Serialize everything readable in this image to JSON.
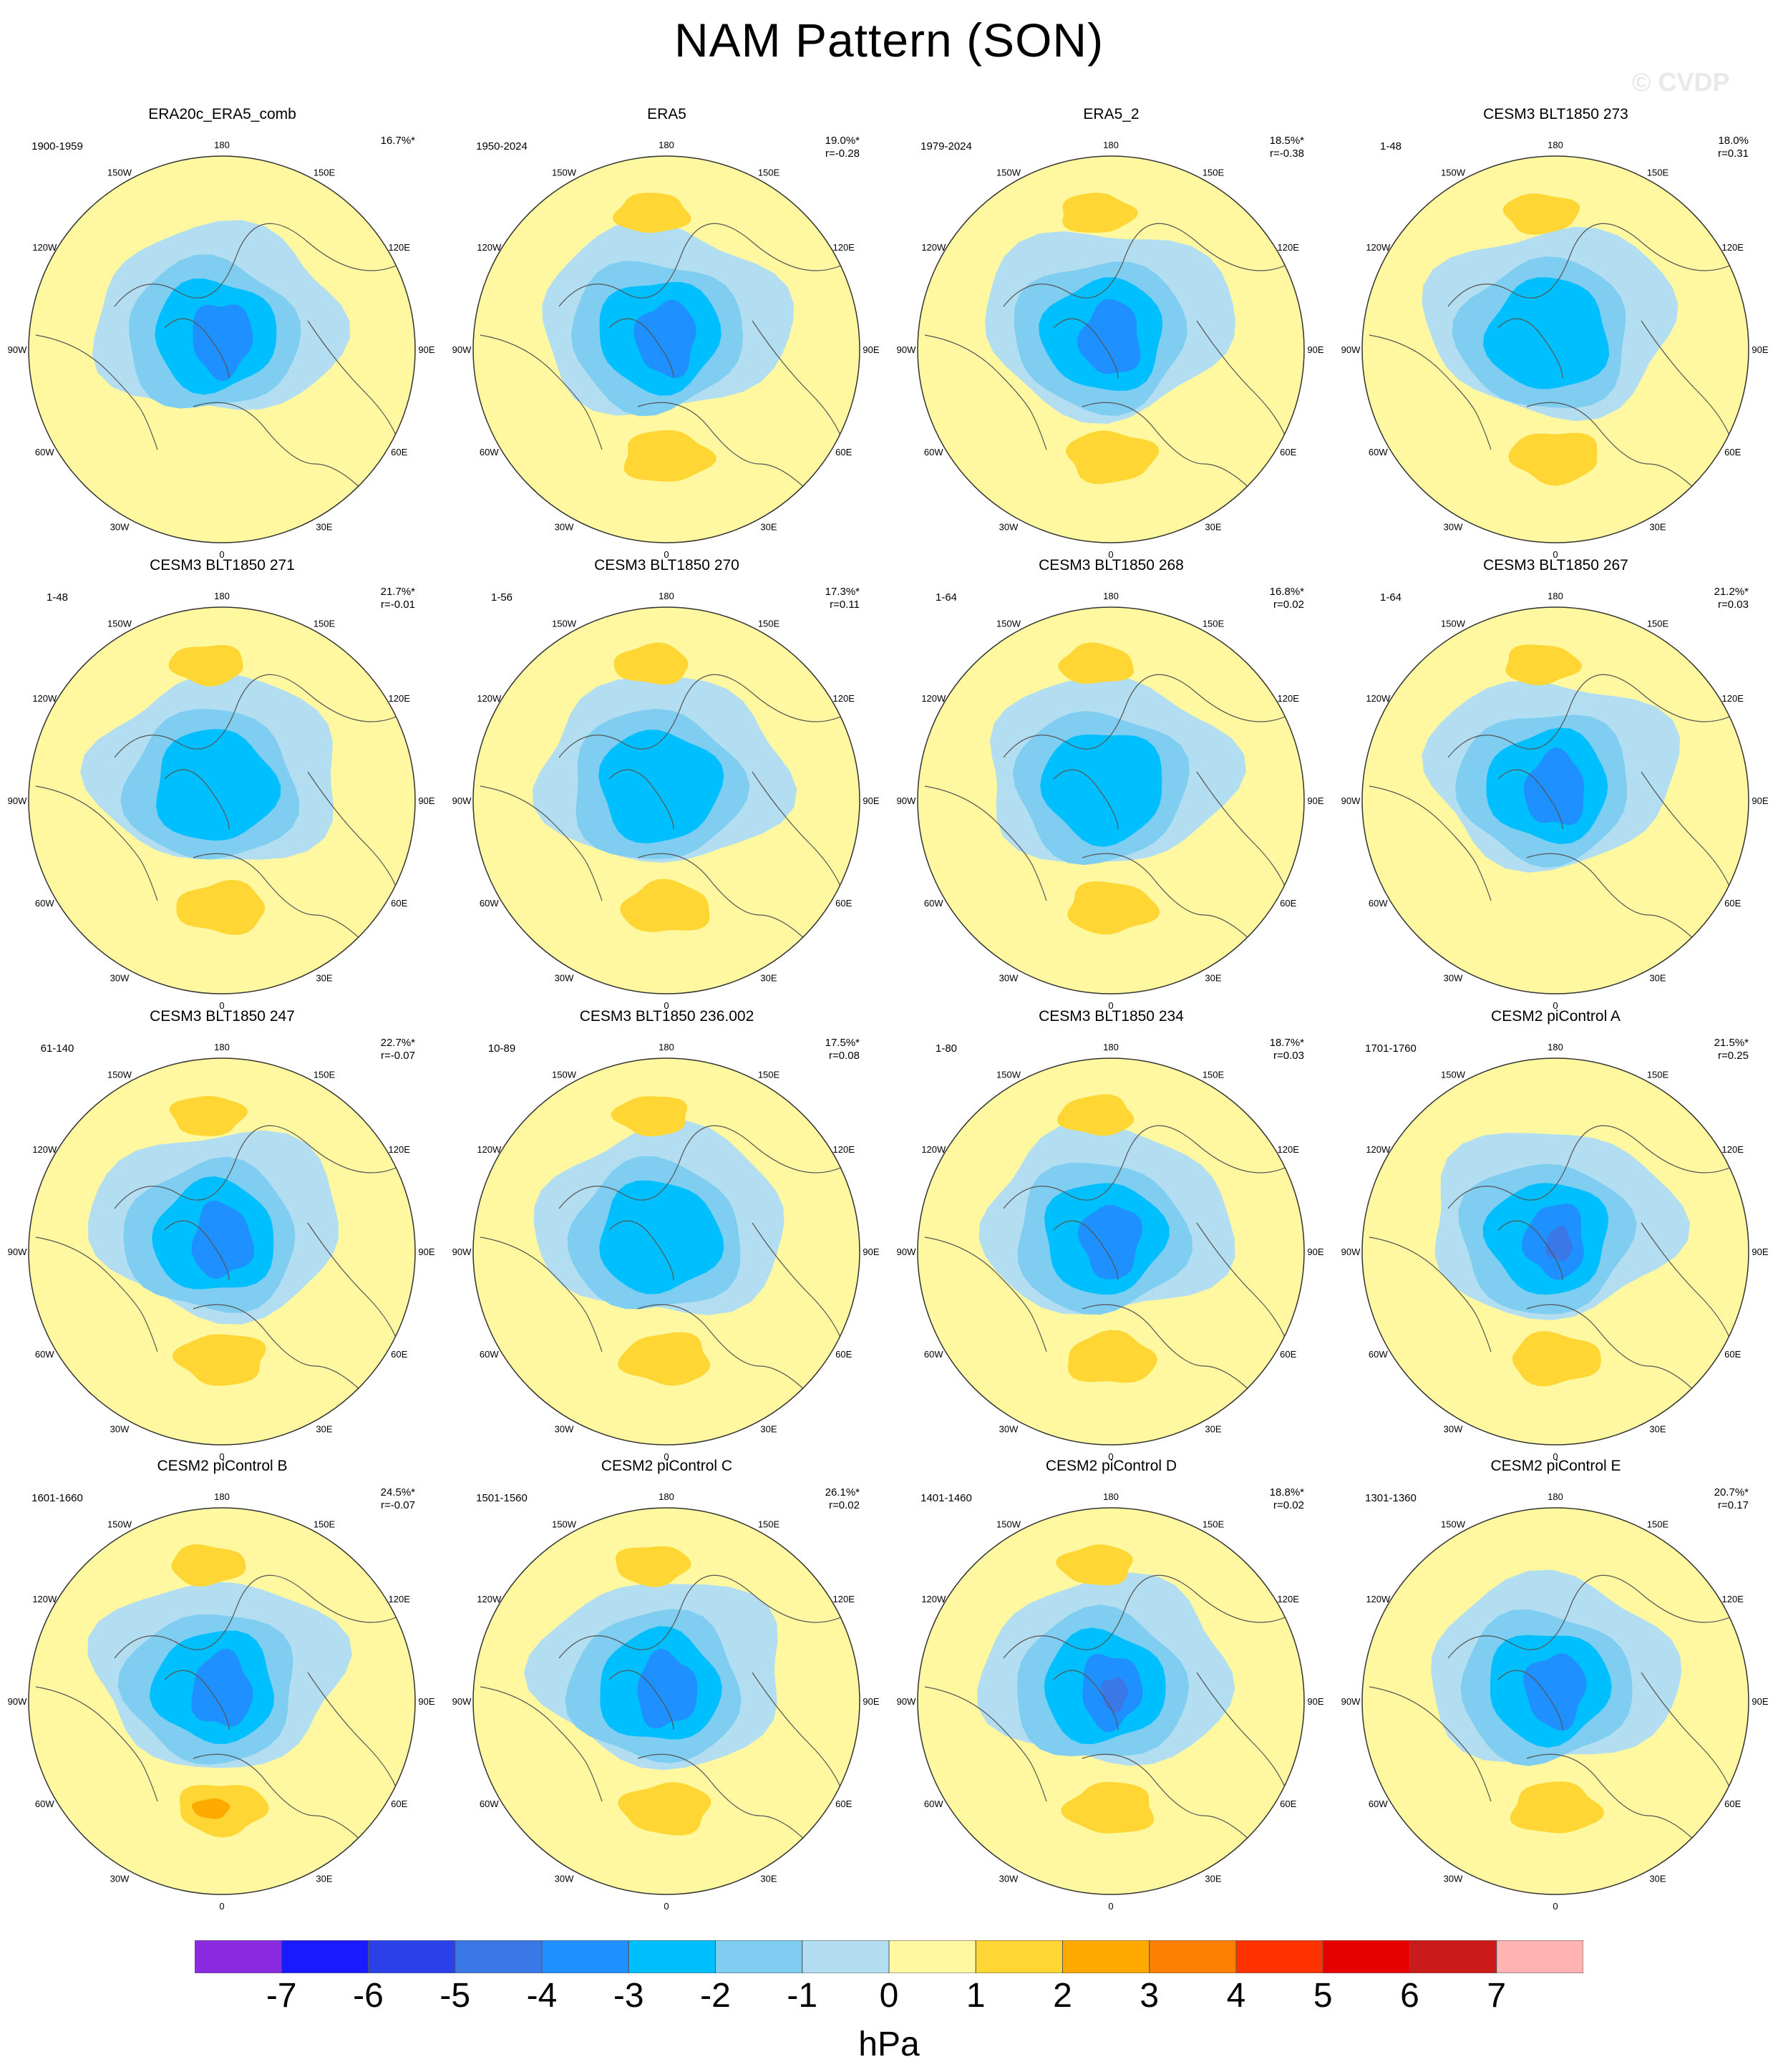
{
  "title": "NAM Pattern (SON)",
  "watermark": "© CVDP",
  "lon_labels": [
    "180",
    "150E",
    "120E",
    "90E",
    "60E",
    "30E",
    "0",
    "30W",
    "60W",
    "90W",
    "120W",
    "150W"
  ],
  "panels": [
    {
      "title": "ERA20c_ERA5_comb",
      "period": "1900-1959",
      "pct": "16.7%*",
      "r": ""
    },
    {
      "title": "ERA5",
      "period": "1950-2024",
      "pct": "19.0%*",
      "r": "r=-0.28"
    },
    {
      "title": "ERA5_2",
      "period": "1979-2024",
      "pct": "18.5%*",
      "r": "r=-0.38"
    },
    {
      "title": "CESM3 BLT1850 273",
      "period": "1-48",
      "pct": "18.0%",
      "r": "r=0.31"
    },
    {
      "title": "CESM3 BLT1850 271",
      "period": "1-48",
      "pct": "21.7%*",
      "r": "r=-0.01"
    },
    {
      "title": "CESM3 BLT1850 270",
      "period": "1-56",
      "pct": "17.3%*",
      "r": "r=0.11"
    },
    {
      "title": "CESM3 BLT1850 268",
      "period": "1-64",
      "pct": "16.8%*",
      "r": "r=0.02"
    },
    {
      "title": "CESM3 BLT1850 267",
      "period": "1-64",
      "pct": "21.2%*",
      "r": "r=0.03"
    },
    {
      "title": "CESM3 BLT1850 247",
      "period": "61-140",
      "pct": "22.7%*",
      "r": "r=-0.07"
    },
    {
      "title": "CESM3 BLT1850 236.002",
      "period": "10-89",
      "pct": "17.5%*",
      "r": "r=0.08"
    },
    {
      "title": "CESM3 BLT1850 234",
      "period": "1-80",
      "pct": "18.7%*",
      "r": "r=0.03"
    },
    {
      "title": "CESM2 piControl A",
      "period": "1701-1760",
      "pct": "21.5%*",
      "r": "r=0.25"
    },
    {
      "title": "CESM2 piControl B",
      "period": "1601-1660",
      "pct": "24.5%*",
      "r": "r=-0.07"
    },
    {
      "title": "CESM2 piControl C",
      "period": "1501-1560",
      "pct": "26.1%*",
      "r": "r=0.02"
    },
    {
      "title": "CESM2 piControl D",
      "period": "1401-1460",
      "pct": "18.8%*",
      "r": "r=0.02"
    },
    {
      "title": "CESM2 piControl E",
      "period": "1301-1360",
      "pct": "20.7%*",
      "r": "r=0.17"
    }
  ],
  "colorbar": {
    "colors": [
      "#8a2be2",
      "#1a1aff",
      "#2a40e8",
      "#3a78e8",
      "#1e90ff",
      "#00bfff",
      "#7fcdf0",
      "#b3def2",
      "#fff8a0",
      "#ffd633",
      "#ffaa00",
      "#ff7f00",
      "#ff3300",
      "#e60000",
      "#cc1a1a",
      "#ffb3b3"
    ],
    "ticks": [
      "-7",
      "-6",
      "-5",
      "-4",
      "-3",
      "-2",
      "-1",
      "0",
      "1",
      "2",
      "3",
      "4",
      "5",
      "6",
      "7"
    ],
    "unit": "hPa"
  },
  "chart_data": {
    "type": "heatmap",
    "title": "NAM Pattern (SON)",
    "projection": "north polar stereographic, 16 panels in a 4x4 grid",
    "unit": "hPa",
    "levels": [
      -7,
      -6,
      -5,
      -4,
      -3,
      -2,
      -1,
      0,
      1,
      2,
      3,
      4,
      5,
      6,
      7
    ],
    "panels": [
      {
        "name": "ERA20c_ERA5_comb",
        "explained_variance": "16.7%",
        "pattern_r": null,
        "arctic_min_hPa": -4,
        "atlantic_max_hPa": 0,
        "pacific_max_hPa": 0
      },
      {
        "name": "ERA5",
        "explained_variance": "19.0%",
        "pattern_r": -0.28,
        "arctic_min_hPa": -4,
        "atlantic_max_hPa": 2,
        "pacific_max_hPa": 2
      },
      {
        "name": "ERA5_2",
        "explained_variance": "18.5%",
        "pattern_r": -0.38,
        "arctic_min_hPa": -4,
        "atlantic_max_hPa": 2,
        "pacific_max_hPa": 2
      },
      {
        "name": "CESM3 BLT1850 273",
        "explained_variance": "18.0%",
        "pattern_r": 0.31,
        "arctic_min_hPa": -3,
        "atlantic_max_hPa": 2,
        "pacific_max_hPa": 2
      },
      {
        "name": "CESM3 BLT1850 271",
        "explained_variance": "21.7%",
        "pattern_r": -0.01,
        "arctic_min_hPa": -3,
        "atlantic_max_hPa": 2,
        "pacific_max_hPa": 2
      },
      {
        "name": "CESM3 BLT1850 270",
        "explained_variance": "17.3%",
        "pattern_r": 0.11,
        "arctic_min_hPa": -3,
        "atlantic_max_hPa": 2,
        "pacific_max_hPa": 2
      },
      {
        "name": "CESM3 BLT1850 268",
        "explained_variance": "16.8%",
        "pattern_r": 0.02,
        "arctic_min_hPa": -3,
        "atlantic_max_hPa": 2,
        "pacific_max_hPa": 2
      },
      {
        "name": "CESM3 BLT1850 267",
        "explained_variance": "21.2%",
        "pattern_r": 0.03,
        "arctic_min_hPa": -4,
        "atlantic_max_hPa": 0,
        "pacific_max_hPa": 2
      },
      {
        "name": "CESM3 BLT1850 247",
        "explained_variance": "22.7%",
        "pattern_r": -0.07,
        "arctic_min_hPa": -4,
        "atlantic_max_hPa": 2,
        "pacific_max_hPa": 2
      },
      {
        "name": "CESM3 BLT1850 236.002",
        "explained_variance": "17.5%",
        "pattern_r": 0.08,
        "arctic_min_hPa": -3,
        "atlantic_max_hPa": 2,
        "pacific_max_hPa": 2
      },
      {
        "name": "CESM3 BLT1850 234",
        "explained_variance": "18.7%",
        "pattern_r": 0.03,
        "arctic_min_hPa": -4,
        "atlantic_max_hPa": 2,
        "pacific_max_hPa": 2
      },
      {
        "name": "CESM2 piControl A",
        "explained_variance": "21.5%",
        "pattern_r": 0.25,
        "arctic_min_hPa": -5,
        "atlantic_max_hPa": 2,
        "pacific_max_hPa": 0
      },
      {
        "name": "CESM2 piControl B",
        "explained_variance": "24.5%",
        "pattern_r": -0.07,
        "arctic_min_hPa": -4,
        "atlantic_max_hPa": 3,
        "pacific_max_hPa": 2
      },
      {
        "name": "CESM2 piControl C",
        "explained_variance": "26.1%",
        "pattern_r": 0.02,
        "arctic_min_hPa": -4,
        "atlantic_max_hPa": 2,
        "pacific_max_hPa": 2
      },
      {
        "name": "CESM2 piControl D",
        "explained_variance": "18.8%",
        "pattern_r": 0.02,
        "arctic_min_hPa": -5,
        "atlantic_max_hPa": 2,
        "pacific_max_hPa": 2
      },
      {
        "name": "CESM2 piControl E",
        "explained_variance": "20.7%",
        "pattern_r": 0.17,
        "arctic_min_hPa": -4,
        "atlantic_max_hPa": 2,
        "pacific_max_hPa": 0
      }
    ]
  }
}
